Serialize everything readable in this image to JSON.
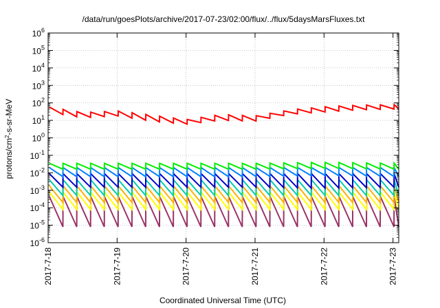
{
  "chart_data": {
    "type": "line",
    "title": "/data/run/goesPlots/archive/2017-07-23/02:00/flux/../flux/5daysMarsFluxes.txt",
    "xlabel": "Coordinated Universal Time (UTC)",
    "ylabel": "protons/cm2-s-sr-MeV",
    "ylabel_parts": {
      "main": "protons/cm",
      "sup": "2",
      "rest": "-s-sr-MeV"
    },
    "yscale": "log",
    "ylim": [
      1e-06,
      1000000.0
    ],
    "xlim": [
      "2017-07-18 00:00",
      "2017-07-23 02:00"
    ],
    "grid": true,
    "x_ticks": [
      "2017-7-18",
      "2017-7-19",
      "2017-7-20",
      "2017-7-21",
      "2017-7-22",
      "2017-7-23"
    ],
    "y_ticks": [
      {
        "base": "10",
        "exp": "-6"
      },
      {
        "base": "10",
        "exp": "-5"
      },
      {
        "base": "10",
        "exp": "-4"
      },
      {
        "base": "10",
        "exp": "-3"
      },
      {
        "base": "10",
        "exp": "-2"
      },
      {
        "base": "10",
        "exp": "-1"
      },
      {
        "base": "10",
        "exp": "0"
      },
      {
        "base": "10",
        "exp": "1"
      },
      {
        "base": "10",
        "exp": "2"
      },
      {
        "base": "10",
        "exp": "3"
      },
      {
        "base": "10",
        "exp": "4"
      },
      {
        "base": "10",
        "exp": "5"
      },
      {
        "base": "10",
        "exp": "6"
      }
    ],
    "series": [
      {
        "color": "#ff0000",
        "width": 2,
        "sawtooth_hours": 4.8,
        "x": [
          "2017-07-18 00:00",
          "2017-07-18 12:00",
          "2017-07-19 00:00",
          "2017-07-19 12:00",
          "2017-07-20 00:00",
          "2017-07-20 12:00",
          "2017-07-21 00:00",
          "2017-07-21 12:00",
          "2017-07-22 00:00",
          "2017-07-22 12:00",
          "2017-07-23 02:00"
        ],
        "peaks": [
          60,
          28,
          35,
          20,
          11,
          22,
          18,
          40,
          60,
          75,
          80
        ],
        "troughs": [
          30,
          14,
          18,
          9,
          6,
          10,
          9,
          22,
          30,
          40,
          45
        ]
      },
      {
        "color": "#00ee00",
        "width": 2,
        "sawtooth_hours": 4.8,
        "x": [
          "2017-07-18 00:00",
          "2017-07-20 00:00",
          "2017-07-21 00:00",
          "2017-07-22 00:00",
          "2017-07-23 02:00"
        ],
        "peaks": [
          0.035,
          0.035,
          0.035,
          0.04,
          0.035
        ],
        "troughs": [
          0.016,
          0.016,
          0.016,
          0.018,
          0.016
        ]
      },
      {
        "color": "#0080ff",
        "width": 2,
        "sawtooth_hours": 4.8,
        "x": [
          "2017-07-18 00:00",
          "2017-07-20 00:00",
          "2017-07-21 00:00",
          "2017-07-22 00:00",
          "2017-07-23 02:00"
        ],
        "peaks": [
          0.02,
          0.02,
          0.02,
          0.02,
          0.02
        ],
        "troughs": [
          0.006,
          0.006,
          0.006,
          0.007,
          0.006
        ]
      },
      {
        "color": "#0000cc",
        "width": 2,
        "sawtooth_hours": 4.8,
        "x": [
          "2017-07-18 00:00",
          "2017-07-20 00:00",
          "2017-07-21 00:00",
          "2017-07-22 00:00",
          "2017-07-23 02:00"
        ],
        "peaks": [
          0.009,
          0.009,
          0.009,
          0.009,
          0.009
        ],
        "troughs": [
          0.0015,
          0.0015,
          0.0015,
          0.0013,
          0.0015
        ]
      },
      {
        "color": "#00ccaa",
        "width": 2,
        "sawtooth_hours": 4.8,
        "x": [
          "2017-07-18 00:00",
          "2017-07-23 02:00"
        ],
        "peaks": [
          0.004,
          0.004
        ],
        "troughs": [
          0.0005,
          0.0005
        ]
      },
      {
        "color": "#ffb000",
        "width": 2,
        "sawtooth_hours": 4.8,
        "x": [
          "2017-07-18 00:00",
          "2017-07-23 02:00"
        ],
        "peaks": [
          0.0018,
          0.0018
        ],
        "troughs": [
          0.0002,
          0.0002
        ]
      },
      {
        "color": "#ffff00",
        "width": 2,
        "sawtooth_hours": 4.8,
        "x": [
          "2017-07-18 00:00",
          "2017-07-23 02:00"
        ],
        "peaks": [
          0.0008,
          0.0008
        ],
        "troughs": [
          8e-05,
          8e-05
        ]
      },
      {
        "color": "#993366",
        "width": 2,
        "sawtooth_hours": 4.8,
        "x": [
          "2017-07-18 00:00",
          "2017-07-23 02:00"
        ],
        "peaks": [
          0.00045,
          0.00045
        ],
        "troughs": [
          8e-06,
          8e-06
        ]
      }
    ]
  }
}
